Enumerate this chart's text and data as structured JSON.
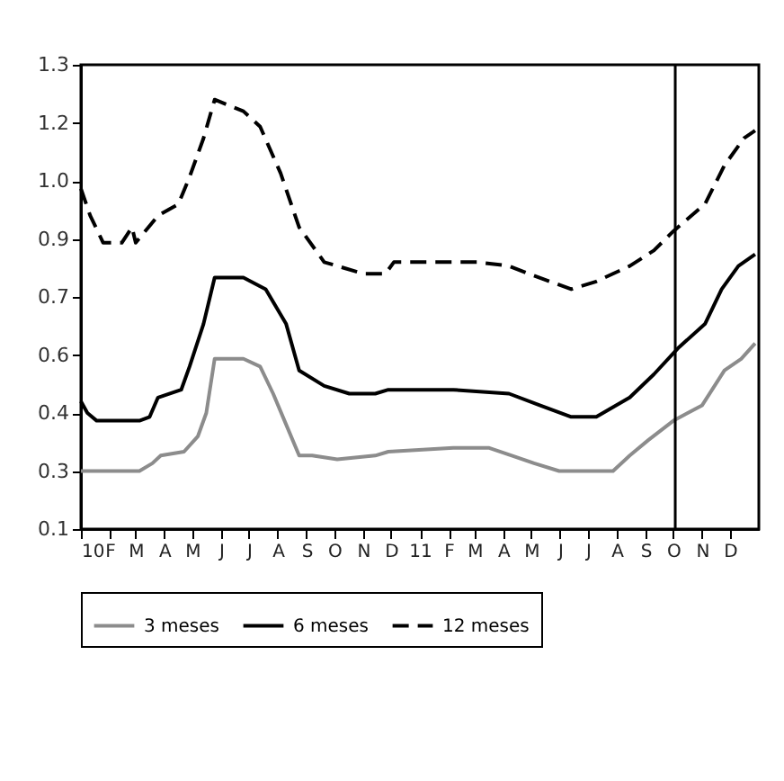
{
  "chart_data": {
    "type": "line",
    "legend": "bottom",
    "grid": false,
    "marker": "none",
    "xlim": [
      "2010-01-01",
      "2012-01-01"
    ],
    "xticks": [
      {
        "value": "2010-01-01",
        "label": "10"
      },
      {
        "value": "2010-02-01",
        "label": "F"
      },
      {
        "value": "2010-03-01",
        "label": "M"
      },
      {
        "value": "2010-04-01",
        "label": "A"
      },
      {
        "value": "2010-05-01",
        "label": "M"
      },
      {
        "value": "2010-06-01",
        "label": "J"
      },
      {
        "value": "2010-07-01",
        "label": "J"
      },
      {
        "value": "2010-08-01",
        "label": "A"
      },
      {
        "value": "2010-09-01",
        "label": "S"
      },
      {
        "value": "2010-10-01",
        "label": "O"
      },
      {
        "value": "2010-11-01",
        "label": "N"
      },
      {
        "value": "2010-12-01",
        "label": "D"
      },
      {
        "value": "2011-01-01",
        "label": "11"
      },
      {
        "value": "2011-02-01",
        "label": "F"
      },
      {
        "value": "2011-03-01",
        "label": "M"
      },
      {
        "value": "2011-04-01",
        "label": "A"
      },
      {
        "value": "2011-05-01",
        "label": "M"
      },
      {
        "value": "2011-06-01",
        "label": "J"
      },
      {
        "value": "2011-07-01",
        "label": "J"
      },
      {
        "value": "2011-08-01",
        "label": "A"
      },
      {
        "value": "2011-09-01",
        "label": "S"
      },
      {
        "value": "2011-10-01",
        "label": "O"
      },
      {
        "value": "2011-11-01",
        "label": "N"
      },
      {
        "value": "2011-12-01",
        "label": "D"
      }
    ],
    "ylim": [
      0.1,
      1.3
    ],
    "yticks": [
      {
        "value": 0.1,
        "label": "0.1"
      },
      {
        "value": 0.25,
        "label": "0.3"
      },
      {
        "value": 0.4,
        "label": "0.4"
      },
      {
        "value": 0.55,
        "label": "0.6"
      },
      {
        "value": 0.7,
        "label": "0.7"
      },
      {
        "value": 0.85,
        "label": "0.9"
      },
      {
        "value": 1.0,
        "label": "1.0"
      },
      {
        "value": 1.15,
        "label": "1.2"
      },
      {
        "value": 1.3,
        "label": "1.3"
      }
    ],
    "ref_lines": [
      {
        "axis": "x",
        "value": "2011-10-03",
        "color": "#000000"
      }
    ],
    "series": [
      {
        "name": "3 meses",
        "color": "#8c8c8c",
        "line_style": "solid",
        "x": [
          "2010-01-01",
          "2010-03-05",
          "2010-03-19",
          "2010-03-28",
          "2010-04-22",
          "2010-05-07",
          "2010-05-16",
          "2010-05-25",
          "2010-06-25",
          "2010-07-13",
          "2010-07-27",
          "2010-08-10",
          "2010-08-24",
          "2010-09-07",
          "2010-10-04",
          "2010-11-14",
          "2010-11-28",
          "2011-02-06",
          "2011-03-16",
          "2011-04-10",
          "2011-05-04",
          "2011-05-31",
          "2011-07-28",
          "2011-08-15",
          "2011-09-04",
          "2011-10-01",
          "2011-11-01",
          "2011-11-25",
          "2011-12-13",
          "2011-12-28"
        ],
        "values": [
          0.25,
          0.25,
          0.27,
          0.29,
          0.3,
          0.34,
          0.4,
          0.54,
          0.54,
          0.52,
          0.45,
          0.37,
          0.29,
          0.29,
          0.28,
          0.29,
          0.3,
          0.31,
          0.31,
          0.29,
          0.27,
          0.25,
          0.25,
          0.29,
          0.33,
          0.38,
          0.42,
          0.51,
          0.54,
          0.58
        ]
      },
      {
        "name": "6 meses",
        "color": "#000000",
        "line_style": "solid",
        "x": [
          "2010-01-01",
          "2010-01-08",
          "2010-01-18",
          "2010-03-05",
          "2010-03-16",
          "2010-03-25",
          "2010-04-19",
          "2010-04-28",
          "2010-05-13",
          "2010-05-25",
          "2010-06-25",
          "2010-07-19",
          "2010-08-10",
          "2010-08-24",
          "2010-09-20",
          "2010-10-17",
          "2010-11-14",
          "2010-11-28",
          "2011-02-06",
          "2011-04-07",
          "2011-05-10",
          "2011-06-13",
          "2011-07-10",
          "2011-08-15",
          "2011-09-10",
          "2011-10-07",
          "2011-11-04",
          "2011-11-22",
          "2011-12-10",
          "2011-12-28"
        ],
        "values": [
          0.43,
          0.4,
          0.38,
          0.38,
          0.39,
          0.44,
          0.46,
          0.52,
          0.63,
          0.75,
          0.75,
          0.72,
          0.63,
          0.51,
          0.47,
          0.45,
          0.45,
          0.46,
          0.46,
          0.45,
          0.42,
          0.39,
          0.39,
          0.44,
          0.5,
          0.57,
          0.63,
          0.72,
          0.78,
          0.81
        ]
      },
      {
        "name": "12 meses",
        "color": "#000000",
        "line_style": "dashed",
        "x": [
          "2010-01-01",
          "2010-01-11",
          "2010-01-25",
          "2010-02-14",
          "2010-02-25",
          "2010-03-01",
          "2010-03-25",
          "2010-04-16",
          "2010-04-28",
          "2010-05-13",
          "2010-05-25",
          "2010-06-25",
          "2010-07-13",
          "2010-08-04",
          "2010-08-24",
          "2010-09-20",
          "2010-11-01",
          "2010-11-25",
          "2010-12-04",
          "2011-02-06",
          "2011-03-04",
          "2011-04-07",
          "2011-04-28",
          "2011-06-13",
          "2011-07-10",
          "2011-08-15",
          "2011-09-10",
          "2011-10-01",
          "2011-11-04",
          "2011-11-25",
          "2011-12-16",
          "2011-12-28"
        ],
        "values": [
          0.98,
          0.91,
          0.84,
          0.84,
          0.88,
          0.84,
          0.91,
          0.94,
          1.01,
          1.11,
          1.21,
          1.18,
          1.14,
          1.02,
          0.88,
          0.79,
          0.76,
          0.76,
          0.79,
          0.79,
          0.79,
          0.78,
          0.76,
          0.72,
          0.74,
          0.78,
          0.82,
          0.87,
          0.94,
          1.04,
          1.11,
          1.13
        ]
      }
    ]
  }
}
